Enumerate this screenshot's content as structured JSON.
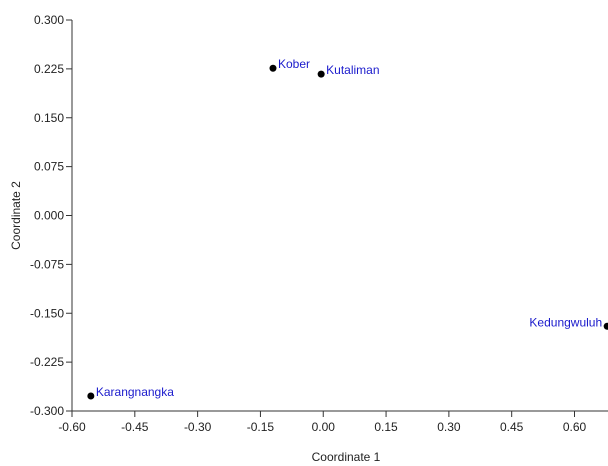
{
  "chart_data": {
    "type": "scatter",
    "xlabel": "Coordinate 1",
    "ylabel": "Coordinate 2",
    "xlim": [
      -0.6,
      0.68
    ],
    "ylim": [
      -0.3,
      0.3
    ],
    "x_ticks": [
      -0.6,
      -0.45,
      -0.3,
      -0.15,
      0.0,
      0.15,
      0.3,
      0.45,
      0.6
    ],
    "y_ticks": [
      -0.3,
      -0.225,
      -0.15,
      -0.075,
      0.0,
      0.075,
      0.15,
      0.225,
      0.3
    ],
    "x_tick_labels": [
      "-0.60",
      "-0.45",
      "-0.30",
      "-0.15",
      "0.00",
      "0.15",
      "0.30",
      "0.45",
      "0.60"
    ],
    "y_tick_labels": [
      "-0.300",
      "-0.225",
      "-0.150",
      "-0.075",
      "0.000",
      "0.075",
      "0.150",
      "0.225",
      "0.300"
    ],
    "grid": false,
    "point_color": "#000000",
    "label_color": "#1a1acc",
    "points": [
      {
        "label": "Kober",
        "x": -0.12,
        "y": 0.226,
        "label_side": "right"
      },
      {
        "label": "Kutaliman",
        "x": -0.005,
        "y": 0.217,
        "label_side": "right"
      },
      {
        "label": "Kedungwuluh",
        "x": 0.678,
        "y": -0.17,
        "label_side": "left"
      },
      {
        "label": "Karangnangka",
        "x": -0.555,
        "y": -0.277,
        "label_side": "right"
      }
    ]
  }
}
